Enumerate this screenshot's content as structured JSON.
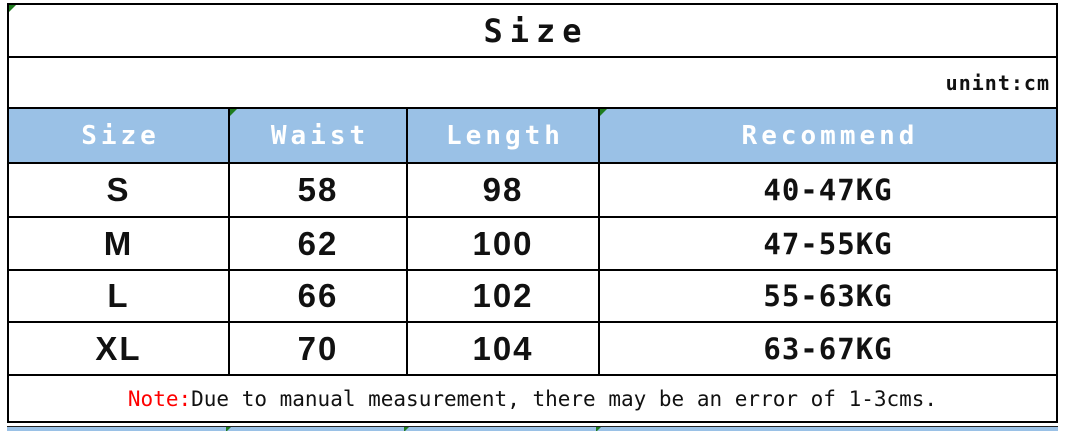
{
  "title": "Size",
  "unit_label": "unint:cm",
  "table": {
    "columns": [
      "Size",
      "Waist",
      "Length",
      "Recommend"
    ],
    "rows": [
      [
        "S",
        "58",
        "98",
        "40-47KG"
      ],
      [
        "M",
        "62",
        "100",
        "47-55KG"
      ],
      [
        "L",
        "66",
        "102",
        "55-63KG"
      ],
      [
        "XL",
        "70",
        "104",
        "63-67KG"
      ]
    ]
  },
  "note": {
    "prefix": "Note:",
    "text": "Due to manual measurement, there may be an error of 1-3cms."
  },
  "colors": {
    "header_bg": "#9AC1E6",
    "header_text": "#FFFFFF",
    "note_prefix": "#FE0000",
    "grid_border": "#000000",
    "indicator_green": "#1E7B1E"
  }
}
